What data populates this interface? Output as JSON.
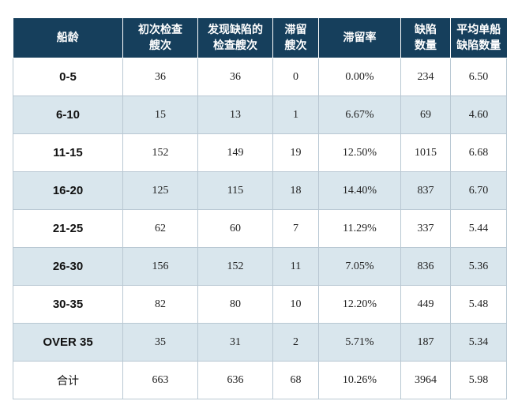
{
  "headers": [
    "船龄",
    "初次检查\n艘次",
    "发现缺陷的\n检查艘次",
    "滞留\n艘次",
    "滞留率",
    "缺陷\n数量",
    "平均单船\n缺陷数量"
  ],
  "rows": [
    {
      "age": "0-5",
      "initial": "36",
      "found": "36",
      "detained": "0",
      "rate": "0.00%",
      "defects": "234",
      "avg": "6.50"
    },
    {
      "age": "6-10",
      "initial": "15",
      "found": "13",
      "detained": "1",
      "rate": "6.67%",
      "defects": "69",
      "avg": "4.60"
    },
    {
      "age": "11-15",
      "initial": "152",
      "found": "149",
      "detained": "19",
      "rate": "12.50%",
      "defects": "1015",
      "avg": "6.68"
    },
    {
      "age": "16-20",
      "initial": "125",
      "found": "115",
      "detained": "18",
      "rate": "14.40%",
      "defects": "837",
      "avg": "6.70"
    },
    {
      "age": "21-25",
      "initial": "62",
      "found": "60",
      "detained": "7",
      "rate": "11.29%",
      "defects": "337",
      "avg": "5.44"
    },
    {
      "age": "26-30",
      "initial": "156",
      "found": "152",
      "detained": "11",
      "rate": "7.05%",
      "defects": "836",
      "avg": "5.36"
    },
    {
      "age": "30-35",
      "initial": "82",
      "found": "80",
      "detained": "10",
      "rate": "12.20%",
      "defects": "449",
      "avg": "5.48"
    },
    {
      "age": "OVER 35",
      "initial": "35",
      "found": "31",
      "detained": "2",
      "rate": "5.71%",
      "defects": "187",
      "avg": "5.34"
    }
  ],
  "total": {
    "age": "合计",
    "initial": "663",
    "found": "636",
    "detained": "68",
    "rate": "10.26%",
    "defects": "3964",
    "avg": "5.98"
  }
}
